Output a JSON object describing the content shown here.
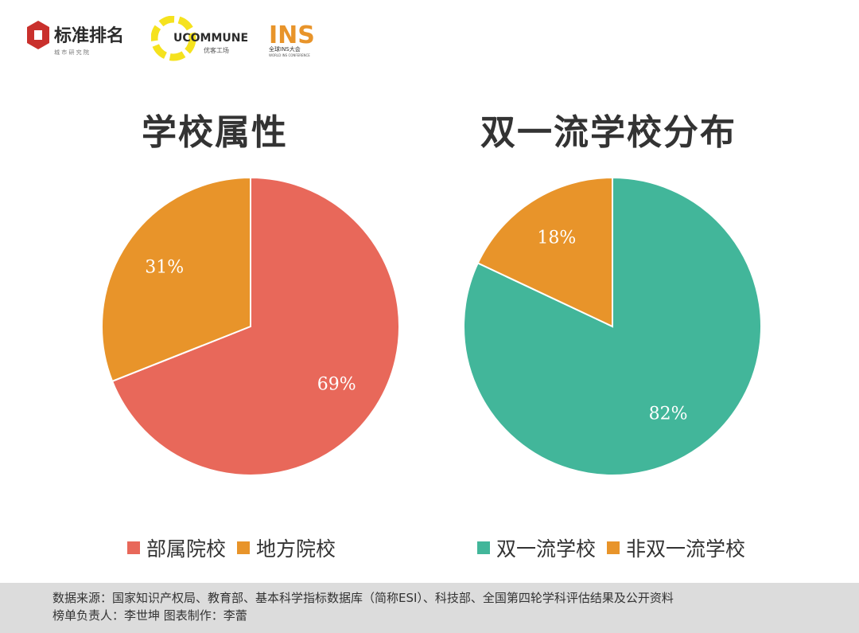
{
  "logos": {
    "brand1": {
      "name": "标准排名",
      "tagline": "城 市 研 究 院"
    },
    "brand2": {
      "name": "UCOMMUNE",
      "sub": "优客工场"
    },
    "brand3": {
      "name": "INS",
      "sub": "全球INS大会",
      "sub2": "WORLD INS CONFERENCE"
    }
  },
  "chart_data": [
    {
      "type": "pie",
      "title": "学校属性",
      "categories": [
        "部属院校",
        "地方院校"
      ],
      "values": [
        69,
        31
      ],
      "labels": [
        "69%",
        "31%"
      ],
      "colors": [
        "#e8685a",
        "#e8942a"
      ],
      "legend": "bottom"
    },
    {
      "type": "pie",
      "title": "双一流学校分布",
      "categories": [
        "双一流学校",
        "非双一流学校"
      ],
      "values": [
        82,
        18
      ],
      "labels": [
        "82%",
        "18%"
      ],
      "colors": [
        "#42b69a",
        "#e8942a"
      ],
      "legend": "bottom"
    }
  ],
  "footer": {
    "line1": "数据来源：国家知识产权局、教育部、基本科学指标数据库（简称ESI）、科技部、全国第四轮学科评估结果及公开资料",
    "line2": "榜单负责人：李世坤   图表制作：李蕾"
  }
}
